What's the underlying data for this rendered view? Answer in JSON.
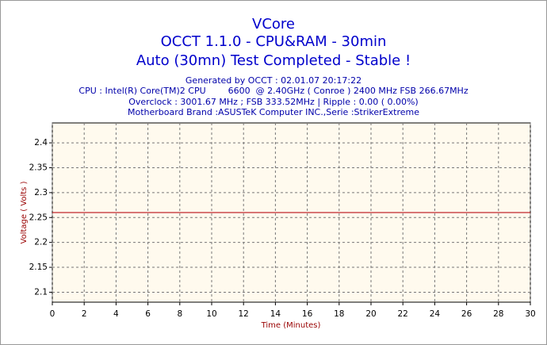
{
  "chart_data": {
    "type": "line",
    "title": "VCore",
    "subtitles": [
      "OCCT 1.1.0 - CPU&RAM - 30min",
      "Auto (30mn) Test Completed - Stable !"
    ],
    "info_lines": [
      "Generated by OCCT : 02.01.07 20:17:22",
      "CPU : Intel(R) Core(TM)2 CPU        6600  @ 2.40GHz ( Conroe ) 2400 MHz FSB 266.67MHz",
      "Overclock : 3001.67 MHz ; FSB 333.52MHz | Ripple : 0.00 ( 0.00%)",
      "Motherboard Brand :ASUSTeK Computer INC.,Serie :StrikerExtreme"
    ],
    "y_label": "Voltage ( Volts )",
    "x_label": "Time (Minutes)",
    "x": [
      0,
      30
    ],
    "values": [
      2.26,
      2.26
    ],
    "color": "#c0282d",
    "xlim": [
      0,
      30
    ],
    "xticks": [
      0,
      2,
      4,
      6,
      8,
      10,
      12,
      14,
      16,
      18,
      20,
      22,
      24,
      26,
      28,
      30
    ],
    "ylim": [
      2.08,
      2.44
    ],
    "yticks": [
      2.1,
      2.15,
      2.2,
      2.25,
      2.3,
      2.35,
      2.4
    ],
    "grid": true
  }
}
